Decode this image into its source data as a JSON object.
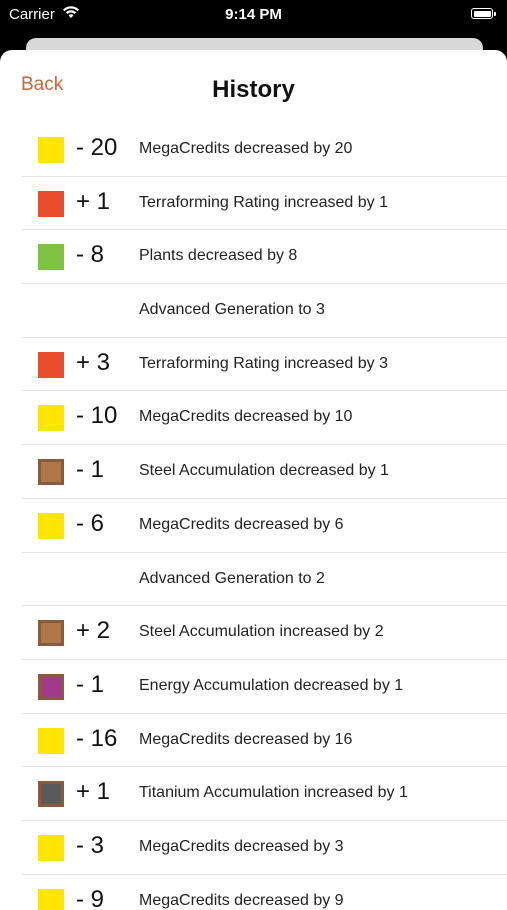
{
  "status_bar": {
    "carrier": "Carrier",
    "time": "9:14 PM"
  },
  "nav": {
    "back_label": "Back",
    "title": "History"
  },
  "colors": {
    "accent": "#c9653a",
    "megacredits": "#ffe600",
    "terraforming": "#e84e2c",
    "plants": "#7dc242",
    "steel": "#b07848",
    "energy": "#a23a8c",
    "titanium": "#5a5a5a"
  },
  "history": [
    {
      "delta": "- 20",
      "text": "MegaCredits decreased by 20",
      "color": "#ffe600",
      "bordered": false
    },
    {
      "delta": "+ 1",
      "text": "Terraforming Rating increased by 1",
      "color": "#e84e2c",
      "bordered": false
    },
    {
      "delta": "- 8",
      "text": "Plants decreased by 8",
      "color": "#7dc242",
      "bordered": false
    },
    {
      "delta": "",
      "text": "Advanced Generation to 3",
      "color": "",
      "bordered": false
    },
    {
      "delta": "+ 3",
      "text": "Terraforming Rating increased by 3",
      "color": "#e84e2c",
      "bordered": false
    },
    {
      "delta": "- 10",
      "text": "MegaCredits decreased by 10",
      "color": "#ffe600",
      "bordered": false
    },
    {
      "delta": "- 1",
      "text": "Steel Accumulation decreased by 1",
      "color": "#b07848",
      "bordered": true
    },
    {
      "delta": "- 6",
      "text": "MegaCredits decreased by 6",
      "color": "#ffe600",
      "bordered": false
    },
    {
      "delta": "",
      "text": "Advanced Generation to 2",
      "color": "",
      "bordered": false
    },
    {
      "delta": "+ 2",
      "text": "Steel Accumulation increased by 2",
      "color": "#b07848",
      "bordered": true
    },
    {
      "delta": "- 1",
      "text": "Energy Accumulation decreased by 1",
      "color": "#a23a8c",
      "bordered": true
    },
    {
      "delta": "- 16",
      "text": "MegaCredits decreased by 16",
      "color": "#ffe600",
      "bordered": false
    },
    {
      "delta": "+ 1",
      "text": "Titanium Accumulation increased by 1",
      "color": "#5a5a5a",
      "bordered": true
    },
    {
      "delta": "- 3",
      "text": "MegaCredits decreased by 3",
      "color": "#ffe600",
      "bordered": false
    },
    {
      "delta": "- 9",
      "text": "MegaCredits decreased by 9",
      "color": "#ffe600",
      "bordered": false
    }
  ]
}
